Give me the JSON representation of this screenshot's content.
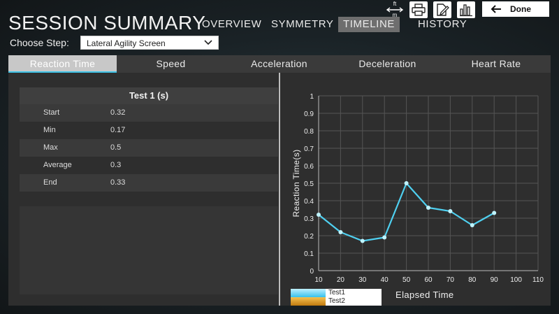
{
  "header": {
    "title": "SESSION SUMMARY",
    "nav": [
      {
        "label": "OVERVIEW",
        "active": false
      },
      {
        "label": "SYMMETRY",
        "active": false
      },
      {
        "label": "TIMELINE",
        "active": true
      },
      {
        "label": "HISTORY",
        "active": false
      }
    ],
    "done_label": "Done",
    "unit_toggle": {
      "top": "ft",
      "bottom": "m"
    },
    "icons": [
      "unit-toggle-icon",
      "printer-icon",
      "edit-document-icon",
      "bar-chart-icon",
      "back-arrow-icon"
    ]
  },
  "step": {
    "label": "Choose Step:",
    "selected": "Lateral Agility Screen"
  },
  "tabs": [
    {
      "label": "Reaction Time",
      "active": true
    },
    {
      "label": "Speed",
      "active": false
    },
    {
      "label": "Acceleration",
      "active": false
    },
    {
      "label": "Deceleration",
      "active": false
    },
    {
      "label": "Heart Rate",
      "active": false
    }
  ],
  "stats": {
    "header": "Test 1 (s)",
    "rows": [
      {
        "label": "Start",
        "value": "0.32"
      },
      {
        "label": "Min",
        "value": "0.17"
      },
      {
        "label": "Max",
        "value": "0.5"
      },
      {
        "label": "Average",
        "value": "0.3"
      },
      {
        "label": "End",
        "value": "0.33"
      }
    ]
  },
  "colors": {
    "accent": "#3ec3e6",
    "series1": "#4fd0f0",
    "series2": "#e0a020"
  },
  "chart_data": {
    "type": "line",
    "title": "",
    "xlabel": "Elapsed Time",
    "ylabel": "Reaction Time(s)",
    "xlim": [
      10,
      110
    ],
    "ylim": [
      0,
      1
    ],
    "xticks": [
      "10",
      "20",
      "30",
      "40",
      "50",
      "60",
      "70",
      "80",
      "90",
      "100",
      "110"
    ],
    "yticks": [
      "0",
      "0.1",
      "0.2",
      "0.3",
      "0.4",
      "0.5",
      "0.6",
      "0.7",
      "0.8",
      "0.9",
      "1"
    ],
    "grid": true,
    "legend": "bottom-left",
    "series": [
      {
        "name": "Test1",
        "x": [
          10,
          20,
          30,
          40,
          50,
          60,
          70,
          80,
          90
        ],
        "values": [
          0.32,
          0.22,
          0.17,
          0.19,
          0.5,
          0.36,
          0.34,
          0.26,
          0.33
        ]
      },
      {
        "name": "Test2",
        "x": [],
        "values": []
      }
    ]
  }
}
